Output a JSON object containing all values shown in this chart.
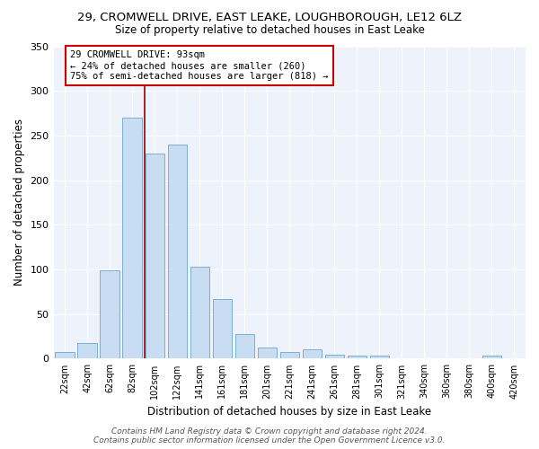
{
  "title1": "29, CROMWELL DRIVE, EAST LEAKE, LOUGHBOROUGH, LE12 6LZ",
  "title2": "Size of property relative to detached houses in East Leake",
  "xlabel": "Distribution of detached houses by size in East Leake",
  "ylabel": "Number of detached properties",
  "bar_color": "#c9ddf2",
  "bar_edge_color": "#7aafd4",
  "bg_color": "#edf2fb",
  "categories": [
    "22sqm",
    "42sqm",
    "62sqm",
    "82sqm",
    "102sqm",
    "122sqm",
    "141sqm",
    "161sqm",
    "181sqm",
    "201sqm",
    "221sqm",
    "241sqm",
    "261sqm",
    "281sqm",
    "301sqm",
    "321sqm",
    "340sqm",
    "360sqm",
    "380sqm",
    "400sqm",
    "420sqm"
  ],
  "values": [
    7,
    18,
    99,
    270,
    230,
    240,
    103,
    67,
    28,
    13,
    7,
    10,
    4,
    3,
    3,
    0,
    0,
    0,
    0,
    3,
    0
  ],
  "ylim": [
    0,
    350
  ],
  "yticks": [
    0,
    50,
    100,
    150,
    200,
    250,
    300,
    350
  ],
  "annotation_text": "29 CROMWELL DRIVE: 93sqm\n← 24% of detached houses are smaller (260)\n75% of semi-detached houses are larger (818) →",
  "annotation_box_color": "#ffffff",
  "annotation_box_edge": "#cc0000",
  "vline_color": "#990000",
  "vline_x": 3.55,
  "footer": "Contains HM Land Registry data © Crown copyright and database right 2024.\nContains public sector information licensed under the Open Government Licence v3.0."
}
